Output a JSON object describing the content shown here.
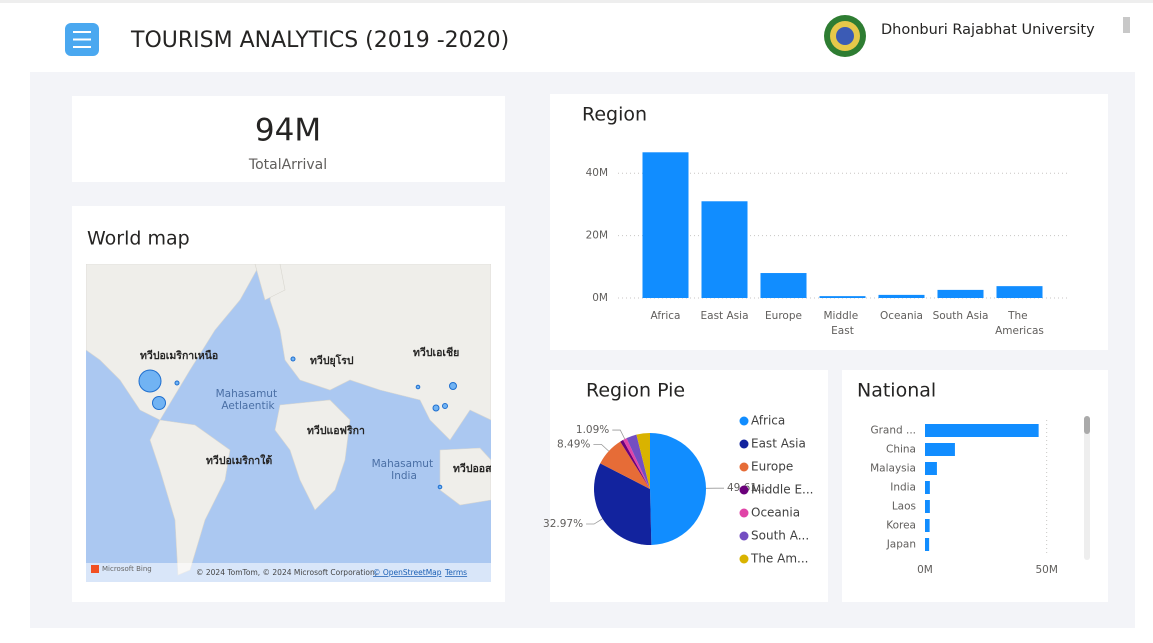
{
  "header": {
    "title": "TOURISM ANALYTICS (2019 -2020)",
    "org": "Dhonburi Rajabhat University"
  },
  "kpi": {
    "value": "94M",
    "label": "TotalArrival"
  },
  "map": {
    "title": "World map",
    "labels": [
      "ทวีปอเมริกาเหนือ",
      "ทวีปยุโรป",
      "ทวีปเอเชีย",
      "Mahasamut Aetlaentik",
      "ทวีปแอฟริกา",
      "ทวีปอเมริกาใต้",
      "Mahasamut India",
      "ทวีปออส"
    ],
    "brand": "Microsoft Bing",
    "credits": "© 2024 TomTom, © 2024 Microsoft Corporation,",
    "osm": "© OpenStreetMap",
    "terms": "Terms"
  },
  "chart_data": [
    {
      "type": "bar",
      "title": "Region",
      "categories": [
        "Africa",
        "East Asia",
        "Europe",
        "Middle East",
        "Oceania",
        "South Asia",
        "The Americas"
      ],
      "values": [
        46700000,
        31000000,
        8000000,
        600000,
        1000000,
        2600000,
        3800000
      ],
      "color": "#118dff",
      "ylim": [
        0,
        50000000
      ],
      "yticks": [
        {
          "value": 0,
          "label": "0M"
        },
        {
          "value": 20000000,
          "label": "20M"
        },
        {
          "value": 40000000,
          "label": "40M"
        }
      ],
      "grid": true
    },
    {
      "type": "pie",
      "title": "Region Pie",
      "categories": [
        "Africa",
        "East Asia",
        "Europe",
        "Middle E...",
        "Oceania",
        "South A...",
        "The Am..."
      ],
      "values": [
        49.61,
        32.97,
        8.49,
        0.95,
        1.09,
        3.0,
        3.89
      ],
      "value_labels": [
        "49.61...",
        "32.97%",
        "8.49%",
        null,
        "1.09%",
        null,
        null
      ],
      "colors": [
        "#118dff",
        "#12239e",
        "#e66c37",
        "#6b007b",
        "#e044a7",
        "#744ec2",
        "#d9b300"
      ]
    },
    {
      "type": "hbar",
      "title": "National",
      "categories": [
        "Grand ...",
        "China",
        "Malaysia",
        "India",
        "Laos",
        "Korea",
        "Japan"
      ],
      "values": [
        46700000,
        12300000,
        4900000,
        2000000,
        2000000,
        1900000,
        1700000
      ],
      "color": "#118dff",
      "xlim": [
        0,
        60000000
      ],
      "xticks": [
        {
          "value": 0,
          "label": "0M"
        },
        {
          "value": 50000000,
          "label": "50M"
        }
      ],
      "grid": true
    }
  ]
}
